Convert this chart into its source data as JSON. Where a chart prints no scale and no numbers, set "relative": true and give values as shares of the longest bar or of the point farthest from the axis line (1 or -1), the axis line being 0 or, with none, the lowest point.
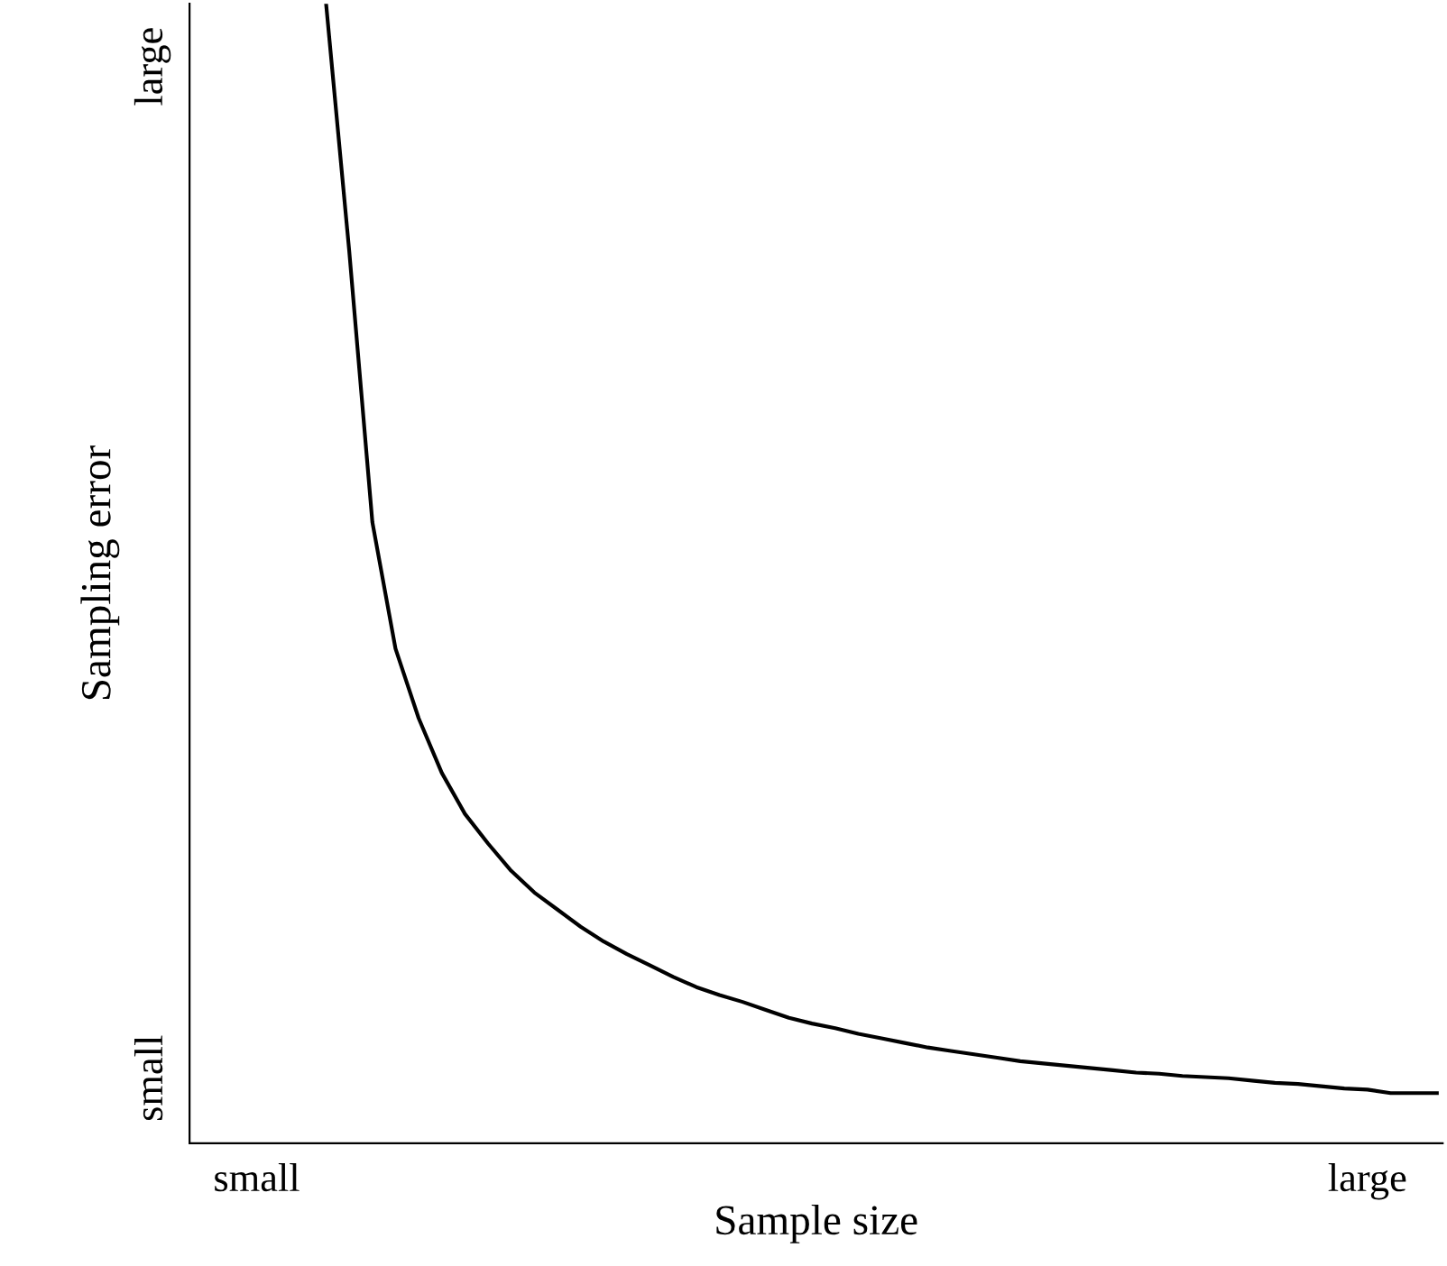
{
  "chart_data": {
    "type": "line",
    "xlabel": "Sample size",
    "ylabel": "Sampling error",
    "relative": true,
    "categories": [
      "small",
      null,
      null,
      null,
      null,
      null,
      null,
      null,
      null,
      null,
      null,
      null,
      null,
      null,
      null,
      null,
      null,
      null,
      null,
      null,
      null,
      null,
      null,
      null,
      null,
      null,
      null,
      null,
      null,
      null,
      null,
      null,
      null,
      null,
      null,
      null,
      null,
      null,
      null,
      null,
      null,
      null,
      null,
      null,
      null,
      null,
      null,
      null,
      "large",
      null,
      null,
      null
    ],
    "series": [
      {
        "color": "#000000",
        "values": [
          null,
          null,
          null,
          1.0,
          0.783,
          0.545,
          0.434,
          0.373,
          0.325,
          0.289,
          0.263,
          0.239,
          0.22,
          0.205,
          0.19,
          0.177,
          0.166,
          0.156,
          0.146,
          0.137,
          0.13,
          0.124,
          0.117,
          0.11,
          0.105,
          0.101,
          0.096,
          0.092,
          0.088,
          0.084,
          0.081,
          0.078,
          0.075,
          0.072,
          0.07,
          0.068,
          0.066,
          0.064,
          0.062,
          0.061,
          0.059,
          0.058,
          0.057,
          0.055,
          0.053,
          0.052,
          0.05,
          0.048,
          0.047,
          0.044,
          0.044,
          0.044
        ]
      }
    ],
    "annotations": [
      "small",
      "large"
    ],
    "grid": false,
    "legend": false,
    "marker": "none",
    "line_style": "solid"
  }
}
